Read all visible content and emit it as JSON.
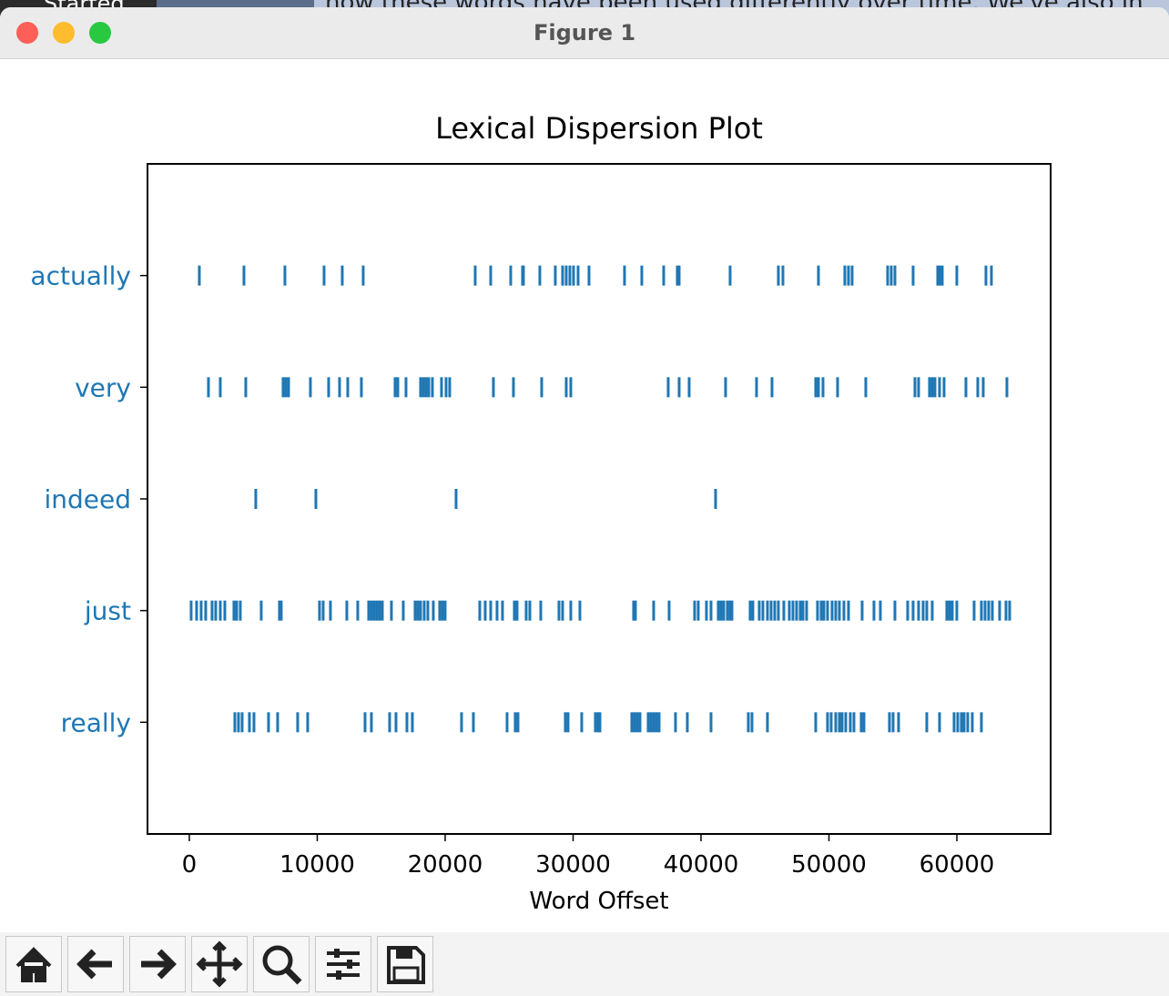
{
  "background": {
    "tab": "Started",
    "text": "how these words have been used differently over time. We've also in"
  },
  "window": {
    "title": "Figure 1"
  },
  "chart_data": {
    "type": "dispersion",
    "title": "Lexical Dispersion Plot",
    "x_label": "Word Offset",
    "color": "#1f77b4",
    "xlim": [
      -3270,
      67330
    ],
    "xticks": [
      0,
      10000,
      20000,
      30000,
      40000,
      50000,
      60000
    ],
    "series": [
      {
        "name": "actually",
        "values": [
          783,
          4270,
          7473,
          10533,
          11957,
          13594,
          22348,
          23558,
          25123,
          26048,
          26119,
          27400,
          28610,
          29180,
          29464,
          29749,
          30034,
          30390,
          31244,
          34019,
          35371,
          37080,
          38147,
          38290,
          42275,
          46047,
          46403,
          49179,
          51242,
          51527,
          51812,
          54588,
          54872,
          55157,
          56580,
          58502,
          58644,
          58858,
          59996,
          62273,
          62700
        ]
      },
      {
        "name": "very",
        "values": [
          1495,
          2420,
          4413,
          7331,
          7544,
          7758,
          9466,
          10889,
          11743,
          12384,
          13451,
          16084,
          16298,
          16938,
          18077,
          18291,
          18504,
          18718,
          19002,
          19714,
          20070,
          20354,
          23771,
          25337,
          27543,
          29464,
          29820,
          37435,
          38290,
          39072,
          41919,
          44339,
          45549,
          48965,
          49179,
          49535,
          50674,
          52880,
          56723,
          57007,
          57861,
          58075,
          58288,
          58644,
          59000,
          60708,
          61634,
          62061,
          63911
        ]
      },
      {
        "name": "indeed",
        "values": [
          5195,
          9893,
          20853,
          41137
        ]
      },
      {
        "name": "just",
        "values": [
          142,
          569,
          925,
          1281,
          1779,
          2064,
          2420,
          2776,
          3487,
          3701,
          3985,
          5622,
          7046,
          7188,
          10177,
          10462,
          11031,
          12312,
          13166,
          14020,
          14234,
          14447,
          14661,
          14874,
          15088,
          15799,
          16725,
          17650,
          17863,
          18077,
          18362,
          18646,
          19073,
          19571,
          19785,
          19998,
          22703,
          23130,
          23558,
          24055,
          24482,
          25408,
          25621,
          26333,
          26618,
          27472,
          28895,
          29180,
          29820,
          30532,
          34731,
          34873,
          36297,
          37506,
          39499,
          39784,
          40424,
          40780,
          41350,
          41563,
          41777,
          42061,
          42275,
          42417,
          43841,
          44054,
          44552,
          44837,
          45193,
          45477,
          45762,
          46047,
          46474,
          46901,
          47186,
          47470,
          47755,
          47968,
          48253,
          49107,
          49392,
          49605,
          49890,
          50246,
          50531,
          50815,
          51171,
          51527,
          52594,
          53520,
          54018,
          55157,
          56153,
          56580,
          57007,
          57363,
          57648,
          58075,
          59213,
          59427,
          59640,
          59996,
          61348,
          61918,
          62202,
          62487,
          62772,
          63341,
          63839,
          64124
        ]
      },
      {
        "name": "really",
        "values": [
          3559,
          3843,
          4128,
          4697,
          5053,
          6192,
          6903,
          8469,
          9252,
          13736,
          14234,
          15657,
          16156,
          17010,
          17437,
          21280,
          22205,
          24838,
          25479,
          25692,
          29393,
          29607,
          30674,
          31742,
          31956,
          32098,
          34589,
          34802,
          35016,
          35229,
          35870,
          36083,
          36297,
          36510,
          36724,
          38005,
          38930,
          40780,
          43698,
          43983,
          45193,
          48965,
          49890,
          50175,
          50531,
          50815,
          51029,
          51313,
          51669,
          51954,
          52523,
          52737,
          54730,
          55014,
          55441,
          57648,
          58644,
          59783,
          60068,
          60352,
          60566,
          60850,
          61206,
          61918
        ]
      }
    ]
  }
}
